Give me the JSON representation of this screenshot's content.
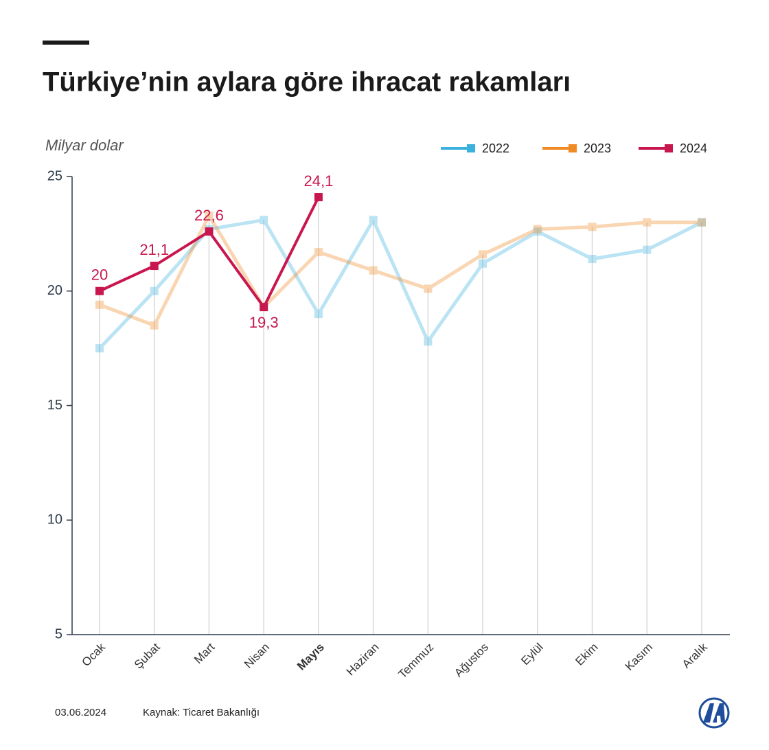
{
  "chart_data": {
    "type": "line",
    "title": "Türkiye’nin aylara göre ihracat rakamları",
    "y_label": "Milyar dolar",
    "categories": [
      "Ocak",
      "Şubat",
      "Mart",
      "Nisan",
      "Mayıs",
      "Haziran",
      "Temmuz",
      "Ağustos",
      "Eylül",
      "Ekim",
      "Kasım",
      "Aralık"
    ],
    "series": [
      {
        "name": "2022",
        "color": "#3bb1e0",
        "values": [
          17.5,
          20.0,
          22.7,
          23.1,
          19.0,
          23.1,
          17.8,
          21.2,
          22.6,
          21.4,
          21.8,
          23.0
        ]
      },
      {
        "name": "2023",
        "color": "#f08a24",
        "values": [
          19.4,
          18.5,
          23.3,
          19.3,
          21.7,
          20.9,
          20.1,
          21.6,
          22.7,
          22.8,
          23.0,
          23.0
        ]
      },
      {
        "name": "2024",
        "color": "#c8174e",
        "values": [
          20,
          21.1,
          22.6,
          19.3,
          24.1,
          null,
          null,
          null,
          null,
          null,
          null,
          null
        ],
        "value_labels": [
          "20",
          "21,1",
          "22,6",
          "19,3",
          "24,1",
          null,
          null,
          null,
          null,
          null,
          null,
          null
        ]
      }
    ],
    "ylim": [
      5,
      25
    ],
    "yticks": [
      5,
      10,
      15,
      20,
      25
    ],
    "date": "03.06.2024",
    "source": "Kaynak: Ticaret Bakanlığı"
  }
}
